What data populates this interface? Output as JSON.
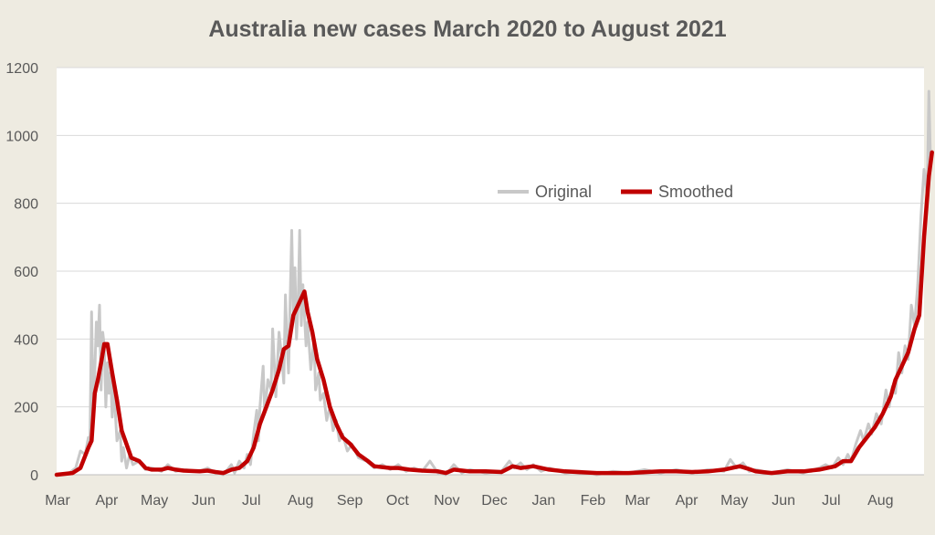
{
  "chart_data": {
    "type": "line",
    "title": "Australia new cases March 2020 to August 2021",
    "xlabel": "",
    "ylabel": "",
    "x_unit": "days since 1 Mar 2020",
    "xlim": [
      0,
      545
    ],
    "ylim": [
      0,
      1200
    ],
    "y_ticks": [
      0,
      200,
      400,
      600,
      800,
      1000,
      1200
    ],
    "x_ticks": [
      {
        "day": 0,
        "label": "Mar"
      },
      {
        "day": 31,
        "label": "Apr"
      },
      {
        "day": 61,
        "label": "May"
      },
      {
        "day": 92,
        "label": "Jun"
      },
      {
        "day": 122,
        "label": "Jul"
      },
      {
        "day": 153,
        "label": "Aug"
      },
      {
        "day": 184,
        "label": "Sep"
      },
      {
        "day": 214,
        "label": "Oct"
      },
      {
        "day": 245,
        "label": "Nov"
      },
      {
        "day": 275,
        "label": "Dec"
      },
      {
        "day": 306,
        "label": "Jan"
      },
      {
        "day": 337,
        "label": "Feb"
      },
      {
        "day": 365,
        "label": "Mar"
      },
      {
        "day": 396,
        "label": "Apr"
      },
      {
        "day": 426,
        "label": "May"
      },
      {
        "day": 457,
        "label": "Jun"
      },
      {
        "day": 487,
        "label": "Jul"
      },
      {
        "day": 518,
        "label": "Aug"
      }
    ],
    "grid": true,
    "legend_position": "center-right",
    "series": [
      {
        "name": "Original",
        "color": "#c8c8c8",
        "points": [
          [
            0,
            0
          ],
          [
            8,
            5
          ],
          [
            12,
            20
          ],
          [
            15,
            70
          ],
          [
            18,
            60
          ],
          [
            20,
            110
          ],
          [
            21,
            90
          ],
          [
            22,
            480
          ],
          [
            23,
            200
          ],
          [
            24,
            300
          ],
          [
            25,
            450
          ],
          [
            26,
            380
          ],
          [
            27,
            500
          ],
          [
            28,
            250
          ],
          [
            29,
            420
          ],
          [
            30,
            380
          ],
          [
            31,
            200
          ],
          [
            32,
            330
          ],
          [
            33,
            240
          ],
          [
            34,
            300
          ],
          [
            35,
            170
          ],
          [
            36,
            260
          ],
          [
            38,
            100
          ],
          [
            40,
            130
          ],
          [
            41,
            40
          ],
          [
            42,
            80
          ],
          [
            44,
            20
          ],
          [
            46,
            60
          ],
          [
            48,
            30
          ],
          [
            52,
            40
          ],
          [
            56,
            15
          ],
          [
            60,
            20
          ],
          [
            66,
            10
          ],
          [
            70,
            30
          ],
          [
            75,
            10
          ],
          [
            80,
            15
          ],
          [
            90,
            10
          ],
          [
            95,
            20
          ],
          [
            100,
            5
          ],
          [
            105,
            0
          ],
          [
            110,
            30
          ],
          [
            112,
            5
          ],
          [
            115,
            40
          ],
          [
            118,
            20
          ],
          [
            120,
            60
          ],
          [
            122,
            30
          ],
          [
            124,
            120
          ],
          [
            126,
            190
          ],
          [
            127,
            100
          ],
          [
            128,
            200
          ],
          [
            130,
            320
          ],
          [
            131,
            180
          ],
          [
            133,
            280
          ],
          [
            135,
            250
          ],
          [
            136,
            430
          ],
          [
            138,
            230
          ],
          [
            140,
            420
          ],
          [
            142,
            330
          ],
          [
            143,
            270
          ],
          [
            144,
            530
          ],
          [
            145,
            400
          ],
          [
            146,
            300
          ],
          [
            148,
            720
          ],
          [
            149,
            460
          ],
          [
            150,
            610
          ],
          [
            151,
            400
          ],
          [
            152,
            500
          ],
          [
            153,
            720
          ],
          [
            154,
            440
          ],
          [
            155,
            560
          ],
          [
            157,
            380
          ],
          [
            158,
            450
          ],
          [
            160,
            310
          ],
          [
            162,
            400
          ],
          [
            163,
            250
          ],
          [
            165,
            300
          ],
          [
            166,
            220
          ],
          [
            168,
            240
          ],
          [
            170,
            160
          ],
          [
            172,
            200
          ],
          [
            174,
            130
          ],
          [
            176,
            160
          ],
          [
            178,
            100
          ],
          [
            180,
            120
          ],
          [
            183,
            70
          ],
          [
            186,
            90
          ],
          [
            190,
            50
          ],
          [
            195,
            40
          ],
          [
            200,
            20
          ],
          [
            205,
            30
          ],
          [
            210,
            15
          ],
          [
            215,
            30
          ],
          [
            220,
            10
          ],
          [
            225,
            20
          ],
          [
            230,
            10
          ],
          [
            235,
            40
          ],
          [
            240,
            5
          ],
          [
            245,
            0
          ],
          [
            250,
            30
          ],
          [
            255,
            5
          ],
          [
            260,
            15
          ],
          [
            270,
            5
          ],
          [
            280,
            10
          ],
          [
            285,
            40
          ],
          [
            288,
            20
          ],
          [
            292,
            35
          ],
          [
            296,
            15
          ],
          [
            300,
            30
          ],
          [
            305,
            10
          ],
          [
            310,
            20
          ],
          [
            320,
            5
          ],
          [
            330,
            10
          ],
          [
            340,
            0
          ],
          [
            350,
            10
          ],
          [
            360,
            5
          ],
          [
            370,
            15
          ],
          [
            380,
            5
          ],
          [
            390,
            15
          ],
          [
            400,
            5
          ],
          [
            410,
            15
          ],
          [
            420,
            10
          ],
          [
            424,
            45
          ],
          [
            428,
            20
          ],
          [
            432,
            35
          ],
          [
            436,
            10
          ],
          [
            440,
            15
          ],
          [
            450,
            5
          ],
          [
            460,
            15
          ],
          [
            470,
            5
          ],
          [
            480,
            20
          ],
          [
            484,
            30
          ],
          [
            488,
            20
          ],
          [
            492,
            50
          ],
          [
            495,
            30
          ],
          [
            498,
            60
          ],
          [
            500,
            40
          ],
          [
            503,
            90
          ],
          [
            506,
            130
          ],
          [
            508,
            100
          ],
          [
            511,
            150
          ],
          [
            513,
            120
          ],
          [
            516,
            180
          ],
          [
            519,
            150
          ],
          [
            522,
            250
          ],
          [
            524,
            200
          ],
          [
            526,
            260
          ],
          [
            528,
            240
          ],
          [
            530,
            360
          ],
          [
            532,
            300
          ],
          [
            534,
            380
          ],
          [
            536,
            340
          ],
          [
            538,
            500
          ],
          [
            540,
            440
          ],
          [
            542,
            560
          ],
          [
            544,
            760
          ],
          [
            546,
            900
          ],
          [
            548,
            820
          ],
          [
            549,
            1130
          ],
          [
            550,
            930
          ]
        ]
      },
      {
        "name": "Smoothed",
        "color": "#c00000",
        "points": [
          [
            0,
            0
          ],
          [
            10,
            5
          ],
          [
            15,
            20
          ],
          [
            20,
            80
          ],
          [
            22,
            100
          ],
          [
            24,
            240
          ],
          [
            26,
            280
          ],
          [
            28,
            330
          ],
          [
            30,
            385
          ],
          [
            32,
            385
          ],
          [
            35,
            300
          ],
          [
            38,
            220
          ],
          [
            41,
            130
          ],
          [
            44,
            90
          ],
          [
            47,
            50
          ],
          [
            52,
            40
          ],
          [
            56,
            20
          ],
          [
            60,
            15
          ],
          [
            66,
            15
          ],
          [
            70,
            20
          ],
          [
            75,
            15
          ],
          [
            80,
            12
          ],
          [
            90,
            10
          ],
          [
            95,
            12
          ],
          [
            100,
            8
          ],
          [
            105,
            5
          ],
          [
            110,
            15
          ],
          [
            115,
            20
          ],
          [
            120,
            40
          ],
          [
            124,
            80
          ],
          [
            128,
            150
          ],
          [
            132,
            200
          ],
          [
            136,
            250
          ],
          [
            140,
            310
          ],
          [
            143,
            370
          ],
          [
            146,
            380
          ],
          [
            149,
            470
          ],
          [
            152,
            500
          ],
          [
            154,
            520
          ],
          [
            156,
            540
          ],
          [
            158,
            480
          ],
          [
            161,
            420
          ],
          [
            164,
            340
          ],
          [
            168,
            280
          ],
          [
            172,
            200
          ],
          [
            176,
            150
          ],
          [
            180,
            110
          ],
          [
            185,
            90
          ],
          [
            190,
            60
          ],
          [
            196,
            40
          ],
          [
            200,
            25
          ],
          [
            210,
            20
          ],
          [
            215,
            20
          ],
          [
            222,
            15
          ],
          [
            230,
            12
          ],
          [
            240,
            10
          ],
          [
            245,
            5
          ],
          [
            250,
            15
          ],
          [
            260,
            10
          ],
          [
            270,
            10
          ],
          [
            280,
            8
          ],
          [
            287,
            25
          ],
          [
            292,
            20
          ],
          [
            300,
            25
          ],
          [
            310,
            15
          ],
          [
            320,
            10
          ],
          [
            340,
            5
          ],
          [
            360,
            5
          ],
          [
            380,
            10
          ],
          [
            390,
            10
          ],
          [
            400,
            8
          ],
          [
            410,
            10
          ],
          [
            420,
            15
          ],
          [
            425,
            20
          ],
          [
            430,
            25
          ],
          [
            435,
            18
          ],
          [
            440,
            10
          ],
          [
            450,
            5
          ],
          [
            460,
            10
          ],
          [
            470,
            10
          ],
          [
            480,
            15
          ],
          [
            490,
            25
          ],
          [
            495,
            40
          ],
          [
            500,
            40
          ],
          [
            505,
            80
          ],
          [
            510,
            110
          ],
          [
            515,
            140
          ],
          [
            520,
            180
          ],
          [
            525,
            230
          ],
          [
            528,
            280
          ],
          [
            532,
            320
          ],
          [
            536,
            360
          ],
          [
            540,
            430
          ],
          [
            543,
            470
          ],
          [
            546,
            700
          ],
          [
            549,
            880
          ],
          [
            551,
            950
          ]
        ]
      }
    ]
  }
}
